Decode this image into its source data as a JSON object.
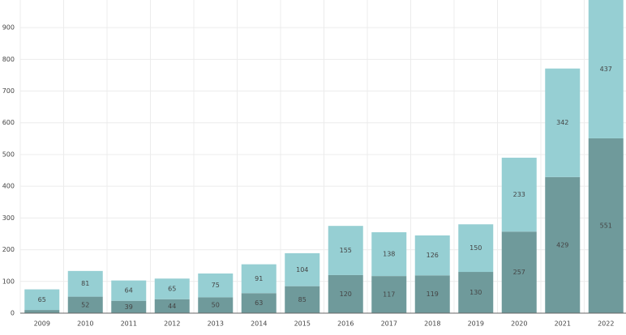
{
  "chart_data": {
    "type": "stacked_bar",
    "categories": [
      "2009",
      "2010",
      "2011",
      "2012",
      "2013",
      "2014",
      "2015",
      "2016",
      "2017",
      "2018",
      "2019",
      "2020",
      "2021",
      "2022"
    ],
    "series": [
      {
        "color": "#6f9a9b",
        "values": [
          10,
          52,
          39,
          44,
          50,
          63,
          85,
          120,
          117,
          119,
          130,
          257,
          429,
          551
        ]
      },
      {
        "color": "#96cfd3",
        "values": [
          65,
          81,
          64,
          65,
          75,
          91,
          104,
          155,
          138,
          126,
          150,
          233,
          342,
          437
        ]
      }
    ],
    "ylim": [
      0,
      987
    ],
    "yticks": [
      0,
      100,
      200,
      300,
      400,
      500,
      600,
      700,
      800,
      900
    ],
    "grid": true
  }
}
